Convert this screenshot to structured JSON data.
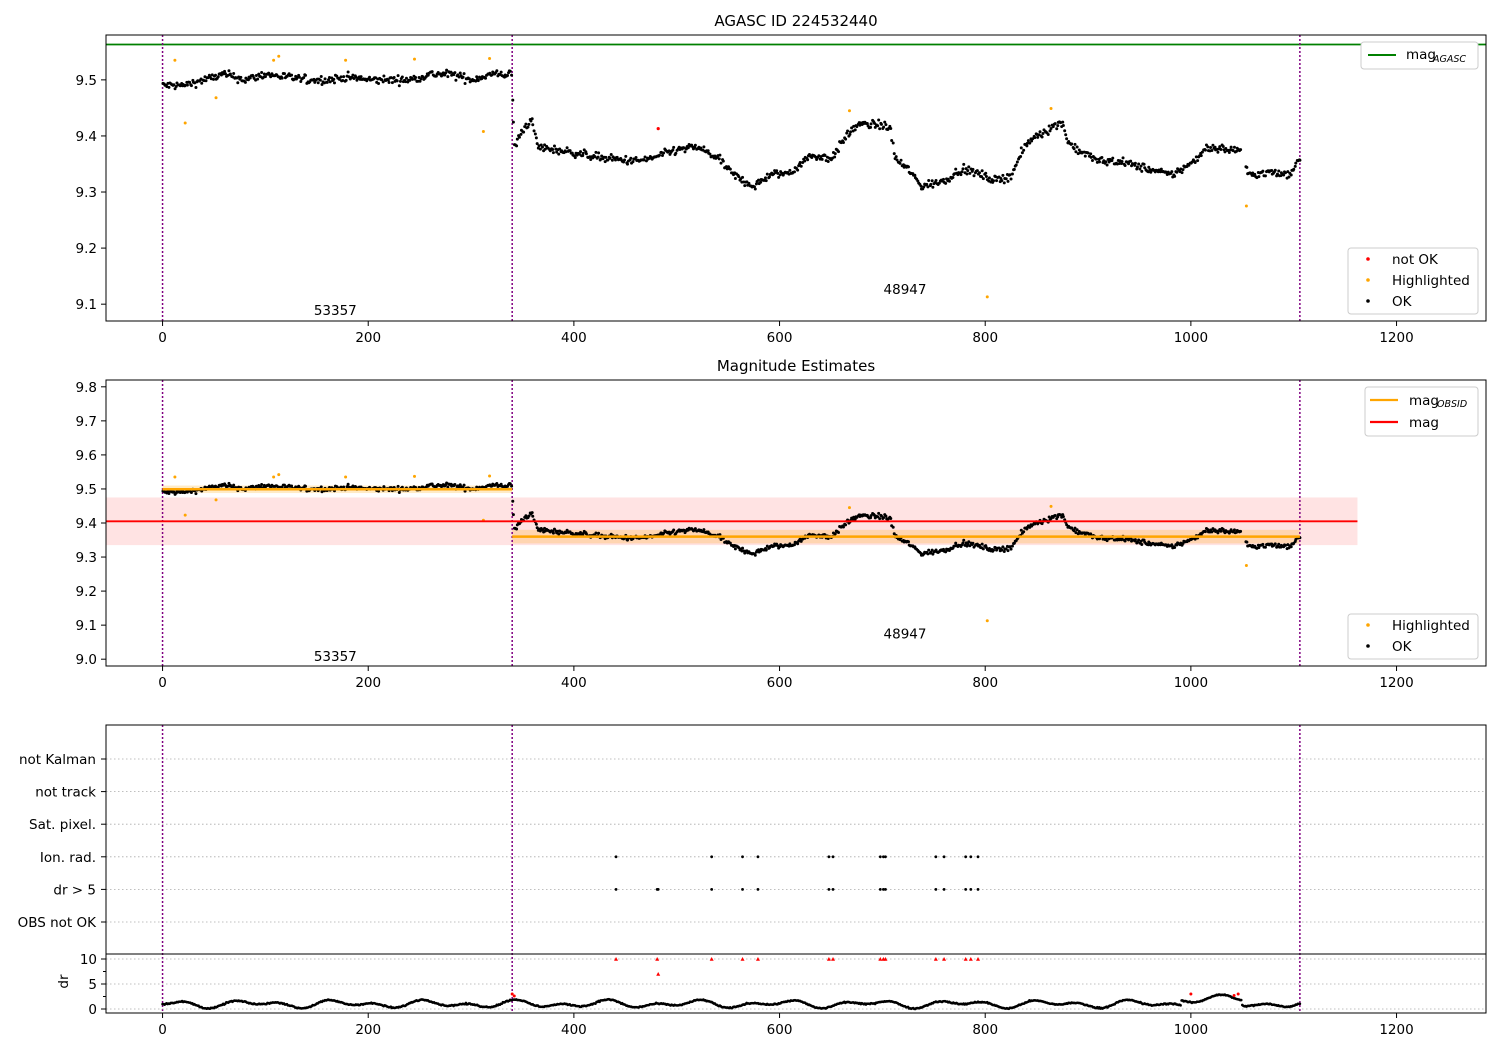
{
  "chart_data": [
    {
      "type": "scatter",
      "title": "AGASC ID 224532440",
      "xlim": [
        -55,
        1287
      ],
      "ylim": [
        9.07,
        9.58
      ],
      "xticks": [
        0,
        200,
        400,
        600,
        800,
        1000,
        1200
      ],
      "yticks": [
        9.1,
        9.2,
        9.3,
        9.4,
        9.5
      ],
      "obs_boundaries": [
        0,
        340,
        1106
      ],
      "obs_labels": [
        {
          "text": "53357",
          "x": 168,
          "y": 9.09
        },
        {
          "text": "48947",
          "x": 722,
          "y": 9.127
        }
      ],
      "reference_lines": [
        {
          "name": "mag_AGASC",
          "value": 9.563,
          "color": "#008000"
        }
      ],
      "legend_upper": [
        {
          "label": "mag",
          "sub": "AGASC",
          "color": "#008000"
        }
      ],
      "legend_lower": [
        {
          "label": "not OK",
          "color": "#ff0000"
        },
        {
          "label": "Highlighted",
          "color": "#ffa500"
        },
        {
          "label": "OK",
          "color": "#000000"
        }
      ],
      "profile": [
        [
          0,
          9.49
        ],
        [
          20,
          9.49
        ],
        [
          40,
          9.5
        ],
        [
          60,
          9.51
        ],
        [
          80,
          9.5
        ],
        [
          100,
          9.51
        ],
        [
          120,
          9.505
        ],
        [
          140,
          9.5
        ],
        [
          160,
          9.5
        ],
        [
          180,
          9.505
        ],
        [
          200,
          9.5
        ],
        [
          220,
          9.5
        ],
        [
          240,
          9.5
        ],
        [
          260,
          9.51
        ],
        [
          280,
          9.51
        ],
        [
          300,
          9.5
        ],
        [
          320,
          9.51
        ],
        [
          339,
          9.51
        ],
        [
          342,
          9.38
        ],
        [
          350,
          9.41
        ],
        [
          358,
          9.43
        ],
        [
          365,
          9.38
        ],
        [
          400,
          9.37
        ],
        [
          430,
          9.36
        ],
        [
          460,
          9.355
        ],
        [
          475,
          9.36
        ],
        [
          500,
          9.375
        ],
        [
          520,
          9.38
        ],
        [
          540,
          9.36
        ],
        [
          555,
          9.33
        ],
        [
          575,
          9.31
        ],
        [
          590,
          9.33
        ],
        [
          610,
          9.335
        ],
        [
          630,
          9.365
        ],
        [
          650,
          9.36
        ],
        [
          665,
          9.4
        ],
        [
          675,
          9.42
        ],
        [
          700,
          9.42
        ],
        [
          708,
          9.41
        ],
        [
          712,
          9.36
        ],
        [
          725,
          9.34
        ],
        [
          738,
          9.31
        ],
        [
          760,
          9.32
        ],
        [
          775,
          9.34
        ],
        [
          790,
          9.335
        ],
        [
          810,
          9.32
        ],
        [
          825,
          9.33
        ],
        [
          838,
          9.38
        ],
        [
          848,
          9.4
        ],
        [
          860,
          9.41
        ],
        [
          875,
          9.425
        ],
        [
          880,
          9.39
        ],
        [
          890,
          9.375
        ],
        [
          910,
          9.355
        ],
        [
          930,
          9.355
        ],
        [
          950,
          9.345
        ],
        [
          980,
          9.33
        ],
        [
          1000,
          9.35
        ],
        [
          1015,
          9.38
        ],
        [
          1040,
          9.375
        ],
        [
          1050,
          9.375
        ],
        [
          1055,
          9.33
        ],
        [
          1075,
          9.335
        ],
        [
          1095,
          9.33
        ],
        [
          1105,
          9.36
        ]
      ],
      "noise": 0.007,
      "highlighted": [
        [
          12,
          9.535
        ],
        [
          22,
          9.423
        ],
        [
          52,
          9.468
        ],
        [
          108,
          9.535
        ],
        [
          113,
          9.542
        ],
        [
          178,
          9.535
        ],
        [
          245,
          9.537
        ],
        [
          312,
          9.408
        ],
        [
          318,
          9.538
        ],
        [
          668,
          9.445
        ],
        [
          802,
          9.113
        ],
        [
          864,
          9.449
        ],
        [
          1054,
          9.275
        ]
      ],
      "not_ok": [
        [
          482,
          9.413
        ]
      ]
    },
    {
      "type": "scatter",
      "title": "Magnitude Estimates",
      "xlim": [
        -55,
        1287
      ],
      "ylim": [
        8.98,
        9.82
      ],
      "xticks": [
        0,
        200,
        400,
        600,
        800,
        1000,
        1200
      ],
      "yticks": [
        9.0,
        9.1,
        9.2,
        9.3,
        9.4,
        9.5,
        9.6,
        9.7,
        9.8
      ],
      "obs_boundaries": [
        0,
        340,
        1106
      ],
      "obs_labels": [
        {
          "text": "53357",
          "x": 168,
          "y": 9.01
        },
        {
          "text": "48947",
          "x": 722,
          "y": 9.075
        }
      ],
      "mag": {
        "value": 9.405,
        "band": [
          9.335,
          9.475
        ],
        "x": [
          -55,
          1162
        ],
        "color": "#ff0000"
      },
      "mag_obsid": [
        {
          "x": [
            0,
            340
          ],
          "value": 9.499,
          "band": [
            9.488,
            9.51
          ]
        },
        {
          "x": [
            340,
            1106
          ],
          "value": 9.36,
          "band": [
            9.34,
            9.38
          ]
        }
      ],
      "legend_upper": [
        {
          "label": "mag",
          "sub": "OBSID",
          "color": "#ffa500"
        },
        {
          "label": "mag",
          "sub": "",
          "color": "#ff0000"
        }
      ],
      "legend_lower": [
        {
          "label": "Highlighted",
          "color": "#ffa500"
        },
        {
          "label": "OK",
          "color": "#000000"
        }
      ]
    },
    {
      "type": "scatter",
      "xlim": [
        -55,
        1287
      ],
      "xticks": [
        0,
        200,
        400,
        600,
        800,
        1000,
        1200
      ],
      "obs_boundaries": [
        0,
        340,
        1106
      ],
      "flag_rows": [
        "not Kalman",
        "not track",
        "Sat. pixel.",
        "Ion. rad.",
        "dr > 5",
        "OBS not OK"
      ],
      "flag_points": {
        "Ion. rad.": [
          441,
          534,
          564,
          579,
          648,
          652,
          698,
          701,
          703,
          752,
          760,
          781,
          786,
          793
        ],
        "dr > 5": [
          441,
          481,
          482,
          534,
          564,
          579,
          648,
          652,
          698,
          701,
          703,
          752,
          760,
          781,
          786,
          793
        ]
      },
      "dr": {
        "ylabel": "dr",
        "ylim": [
          -0.8,
          11
        ],
        "yticks": [
          0,
          5,
          10
        ],
        "high_points": [
          [
            441,
            10
          ],
          [
            481,
            10
          ],
          [
            482,
            7
          ],
          [
            534,
            10
          ],
          [
            564,
            10
          ],
          [
            579,
            10
          ],
          [
            648,
            10
          ],
          [
            652,
            10
          ],
          [
            698,
            10
          ],
          [
            701,
            10
          ],
          [
            703,
            10
          ],
          [
            752,
            10
          ],
          [
            760,
            10
          ],
          [
            781,
            10
          ],
          [
            786,
            10
          ],
          [
            793,
            10
          ]
        ],
        "red_points": [
          [
            340,
            3
          ],
          [
            342,
            2.6
          ],
          [
            1000,
            3
          ],
          [
            1042,
            2.7
          ],
          [
            1046,
            3
          ]
        ]
      }
    }
  ]
}
